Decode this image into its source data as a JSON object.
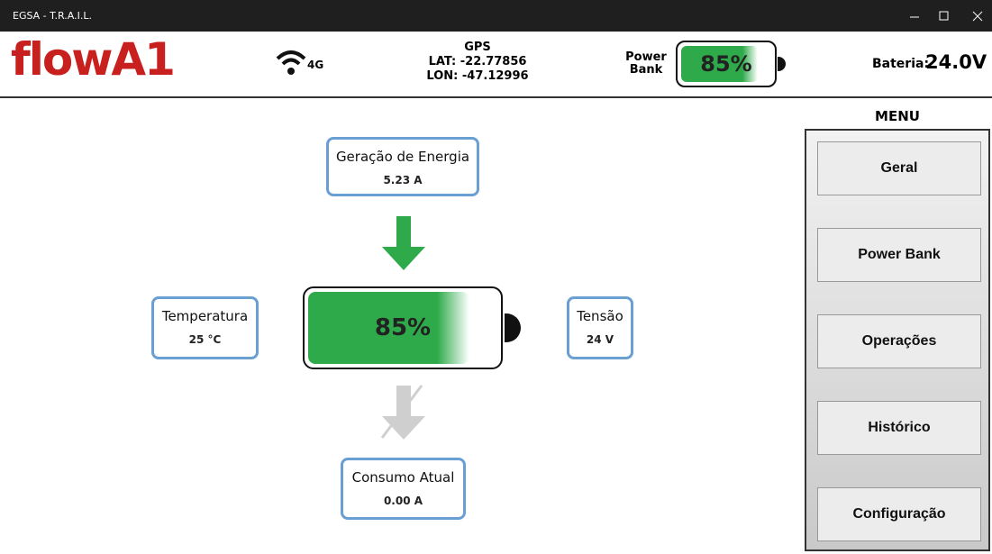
{
  "window": {
    "title": "EGSA - T.R.A.I.L."
  },
  "header": {
    "logo": "flowA1",
    "network": "4G",
    "gps": {
      "title": "GPS",
      "lat": "LAT: -22.77856",
      "lon": "LON: -47.12996"
    },
    "power_bank": {
      "label_line1": "Power",
      "label_line2": "Bank",
      "level": 85,
      "label": "85%"
    },
    "battery": {
      "label": "Bateria:",
      "value": "24.0V"
    }
  },
  "main": {
    "battery": {
      "level": 85,
      "label": "85%"
    },
    "cards": [
      {
        "title": "Geração de Energia",
        "value": "5.23 A"
      },
      {
        "title": "Temperatura",
        "value": "25 °C"
      },
      {
        "title": "Tensão",
        "value": "24 V"
      },
      {
        "title": "Consumo Atual",
        "value": "0.00 A"
      }
    ]
  },
  "menu": {
    "title": "MENU",
    "items": [
      "Geral",
      "Power Bank",
      "Operações",
      "Histórico",
      "Configuração"
    ]
  }
}
